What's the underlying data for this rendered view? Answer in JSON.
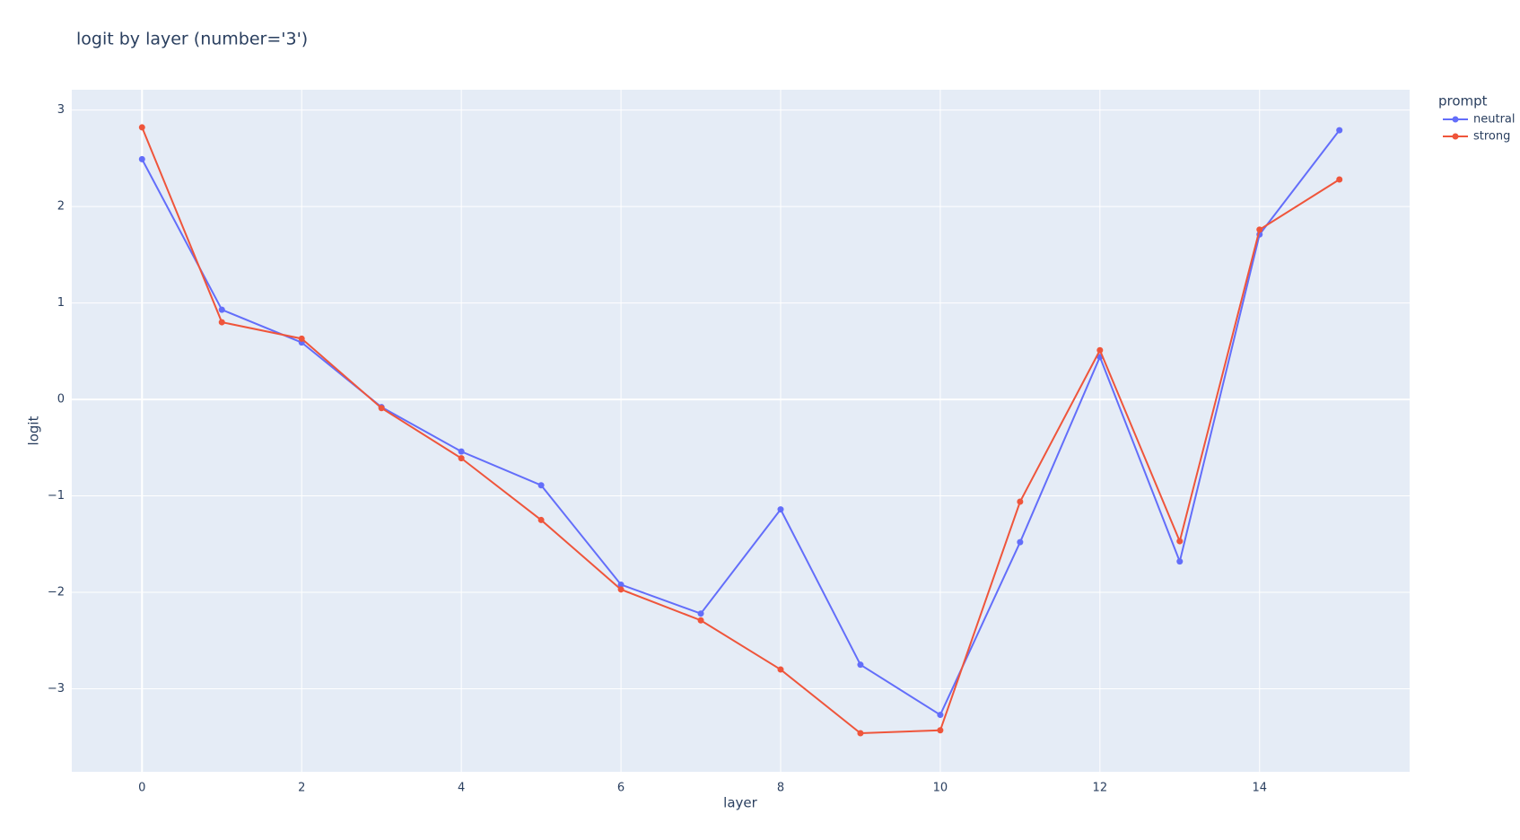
{
  "chart_data": {
    "type": "line",
    "title": "logit by layer (number='3')",
    "x_label": "layer",
    "y_label": "logit",
    "legend_title": "prompt",
    "x": [
      0,
      1,
      2,
      3,
      4,
      5,
      6,
      7,
      8,
      9,
      10,
      11,
      12,
      13,
      14,
      15
    ],
    "series": [
      {
        "name": "neutral",
        "color": "#636efa",
        "values": [
          2.49,
          0.93,
          0.59,
          -0.08,
          -0.54,
          -0.89,
          -1.92,
          -2.22,
          -1.14,
          -2.75,
          -3.27,
          -1.48,
          0.44,
          -1.68,
          1.71,
          2.79
        ]
      },
      {
        "name": "strong",
        "color": "#ef553b",
        "values": [
          2.82,
          0.8,
          0.63,
          -0.09,
          -0.61,
          -1.25,
          -1.97,
          -2.29,
          -2.8,
          -3.46,
          -3.43,
          -1.06,
          0.51,
          -1.47,
          1.76,
          2.28
        ]
      }
    ],
    "xlim": [
      -0.88,
      15.88
    ],
    "ylim": [
      -3.86,
      3.21
    ],
    "xticks": [
      0,
      2,
      4,
      6,
      8,
      10,
      12,
      14
    ],
    "yticks": [
      {
        "value": -3,
        "label": "−3"
      },
      {
        "value": -2,
        "label": "−2"
      },
      {
        "value": -1,
        "label": "−1"
      },
      0,
      1,
      2,
      3
    ],
    "grid": true,
    "legend_position": "right"
  }
}
